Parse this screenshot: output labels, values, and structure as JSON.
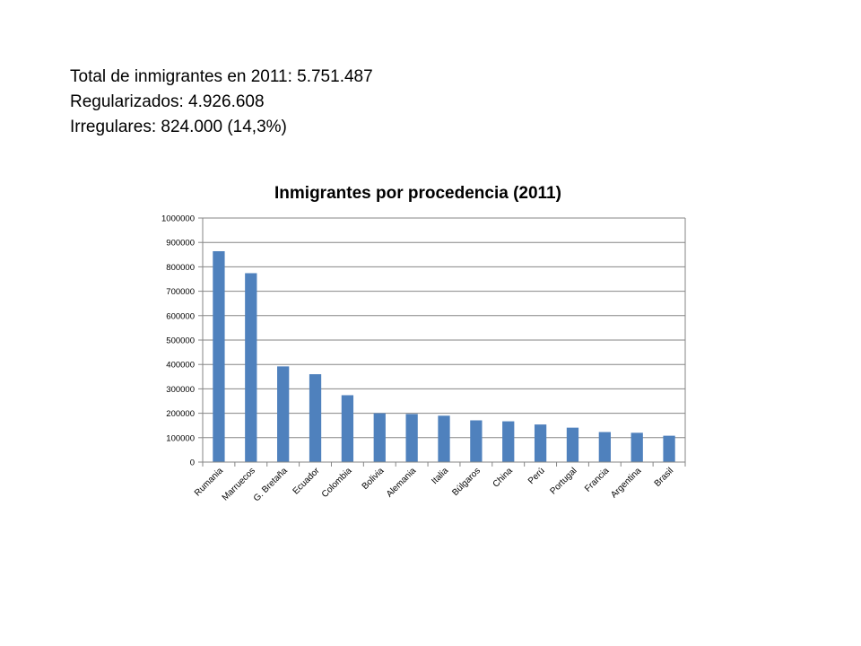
{
  "intro": {
    "line1": "Total de inmigrantes en 2011: 5.751.487",
    "line2": "Regularizados: 4.926.608",
    "line3": "Irregulares: 824.000 (14,3%)"
  },
  "chart_data": {
    "type": "bar",
    "title": "Inmigrantes por procedencia (2011)",
    "xlabel": "",
    "ylabel": "",
    "categories": [
      "Rumania",
      "Marruecos",
      "G. Bretaña",
      "Ecuador",
      "Colombia",
      "Bolivia",
      "Alemania",
      "Italia",
      "Búlgaros",
      "China",
      "Perú",
      "Portugal",
      "Francia",
      "Argentina",
      "Brasil"
    ],
    "values": [
      864000,
      774000,
      392000,
      360000,
      274000,
      200000,
      197000,
      190000,
      171000,
      167000,
      154000,
      141000,
      123000,
      120000,
      108000
    ],
    "ylim": [
      0,
      1000000
    ],
    "yticks": [
      "0",
      "100000",
      "200000",
      "300000",
      "400000",
      "500000",
      "600000",
      "700000",
      "800000",
      "900000",
      "1000000"
    ],
    "grid": true,
    "legend": "none",
    "bar_color": "#4F81BD"
  }
}
